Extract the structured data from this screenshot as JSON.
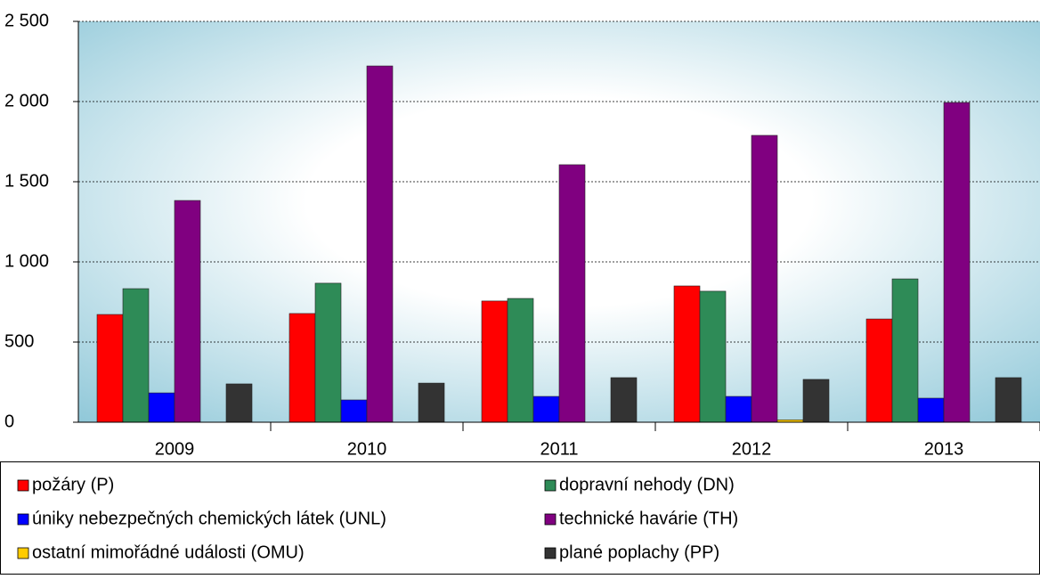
{
  "chart_data": {
    "type": "bar",
    "categories": [
      "2009",
      "2010",
      "2011",
      "2012",
      "2013"
    ],
    "series": [
      {
        "name": "požáry (P)",
        "color": "#ff0000",
        "values": [
          672,
          678,
          756,
          850,
          644
        ]
      },
      {
        "name": "dopravní nehody (DN)",
        "color": "#2e8b57",
        "values": [
          833,
          867,
          772,
          817,
          894
        ]
      },
      {
        "name": "úniky nebezpečných chemických látek (UNL)",
        "color": "#0000ff",
        "values": [
          183,
          139,
          161,
          161,
          150
        ]
      },
      {
        "name": "technické havárie (TH)",
        "color": "#800080",
        "values": [
          1383,
          2222,
          1606,
          1789,
          1994
        ]
      },
      {
        "name": "ostatní mimořádné události (OMU)",
        "color": "#ffcc00",
        "values": [
          0,
          0,
          0,
          15,
          0
        ]
      },
      {
        "name": "plané poplachy (PP)",
        "color": "#333333",
        "values": [
          239,
          244,
          278,
          267,
          278
        ]
      }
    ],
    "ylim": [
      0,
      2500
    ],
    "yticks": [
      0,
      500,
      {
        "value": 1000,
        "label": "1 000"
      },
      {
        "value": 1500,
        "label": "1 500"
      },
      {
        "value": 2000,
        "label": "2 000"
      },
      {
        "value": 2500,
        "label": "2 500"
      }
    ],
    "grid": true
  }
}
